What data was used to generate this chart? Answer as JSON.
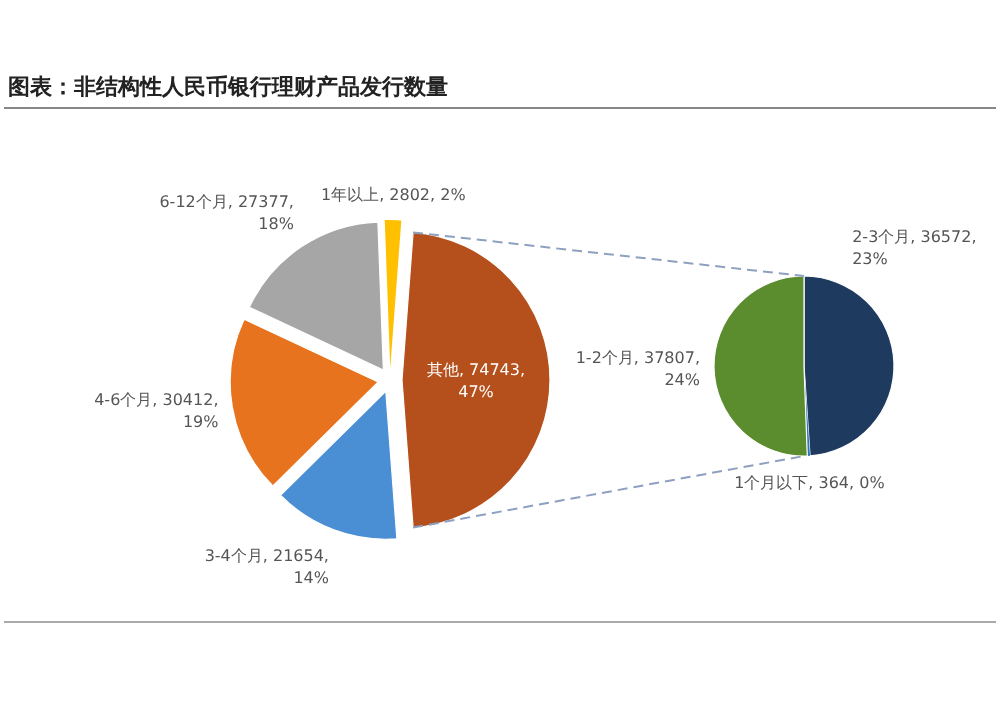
{
  "chart_data": [
    {
      "type": "pie",
      "title": "图表：非结构性人民币银行理财产品发行数量",
      "categories": [
        "其他",
        "3-4个月",
        "4-6个月",
        "6-12个月",
        "1年以上"
      ],
      "values": [
        74743,
        21654,
        30412,
        27377,
        2802
      ],
      "colors": [
        "#b5501c",
        "#4a8fd4",
        "#e8731e",
        "#a6a6a6",
        "#ffc000"
      ],
      "value_labels": [
        "74743, 47%",
        "21654, 14%",
        "30412, 19%",
        "27377, 18%",
        "2802, 2%"
      ],
      "legend": false
    },
    {
      "type": "pie",
      "categories": [
        "2-3个月",
        "1个月以下",
        "1-2个月"
      ],
      "values": [
        36572,
        364,
        37807
      ],
      "colors": [
        "#1e3a5f",
        "#2e75b6",
        "#5b8c2e"
      ],
      "value_labels": [
        "36572, 23%",
        "364, 0%",
        "37807, 24%"
      ],
      "legend": false
    }
  ]
}
